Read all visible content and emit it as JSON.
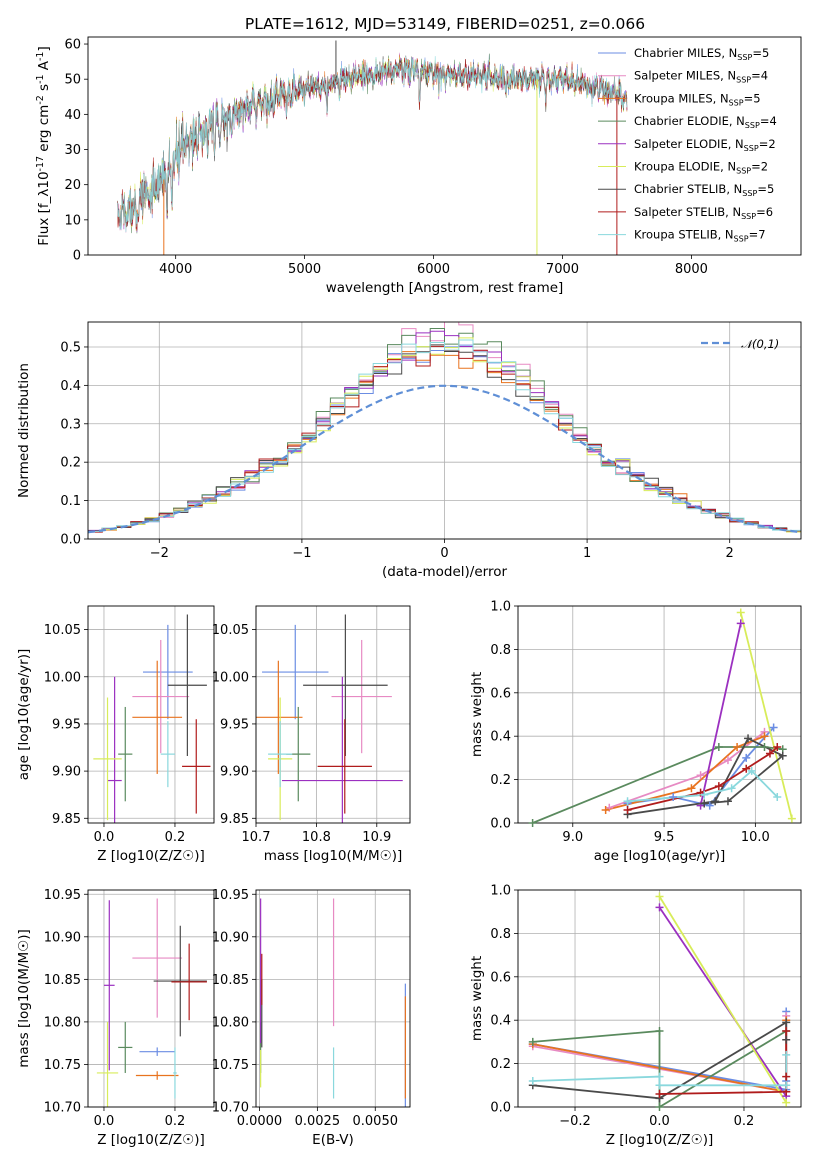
{
  "figure": {
    "title": "PLATE=1612, MJD=53149, FIBERID=0251, z=0.066",
    "colors": {
      "Chabrier MILES": "#6b8de3",
      "Salpeter MILES": "#e78ac3",
      "Kroupa MILES": "#e8731f",
      "Chabrier ELODIE": "#5a8a5e",
      "Salpeter ELODIE": "#9b30c0",
      "Kroupa ELODIE": "#d8ec5a",
      "Chabrier STELIB": "#4a4a4a",
      "Salpeter STELIB": "#b01c1c",
      "Kroupa STELIB": "#8ad8dd",
      "normal": "#5f8fd6"
    }
  },
  "chart_data": [
    {
      "id": "spectrum",
      "type": "line",
      "title": "PLATE=1612, MJD=53149, FIBERID=0251, z=0.066",
      "xlabel": "wavelength [Angstrom, rest frame]",
      "ylabel": "Flux [f_λ10^-17 erg cm^-2 s^-1 A^-1]",
      "xlim": [
        3320,
        8850
      ],
      "ylim": [
        0,
        62
      ],
      "xticks": [
        4000,
        5000,
        6000,
        7000,
        8000
      ],
      "yticks": [
        0,
        10,
        20,
        30,
        40,
        50,
        60
      ],
      "grid": false,
      "legend_position": "top-right",
      "legend": [
        "Chabrier MILES, N_SSP=5",
        "Salpeter MILES, N_SSP=4",
        "Kroupa MILES, N_SSP=5",
        "Chabrier ELODIE, N_SSP=4",
        "Salpeter ELODIE, N_SSP=2",
        "Kroupa ELODIE, N_SSP=2",
        "Chabrier STELIB, N_SSP=5",
        "Salpeter STELIB, N_SSP=6",
        "Kroupa STELIB, N_SSP=7"
      ],
      "continuum": {
        "x": [
          3550,
          3700,
          3850,
          3950,
          4050,
          4200,
          4400,
          4600,
          4800,
          5000,
          5200,
          5400,
          5600,
          5800,
          6000,
          6200,
          6400,
          6600,
          6800,
          7000,
          7200,
          7400,
          7500
        ],
        "y": [
          11,
          15,
          18,
          24,
          31,
          35,
          39,
          42,
          45,
          47,
          49,
          51,
          52,
          53,
          52,
          51,
          51,
          50,
          50,
          50,
          48,
          46,
          44
        ]
      },
      "absorption_lines": [
        {
          "x": 3934,
          "depth": 9
        },
        {
          "x": 3969,
          "depth": 8
        },
        {
          "x": 4102,
          "depth": 6
        },
        {
          "x": 4300,
          "depth": 8
        },
        {
          "x": 4340,
          "depth": 5
        },
        {
          "x": 4861,
          "depth": 4
        },
        {
          "x": 5175,
          "depth": 7
        },
        {
          "x": 5270,
          "depth": 4
        },
        {
          "x": 5890,
          "depth": 12
        },
        {
          "x": 6563,
          "depth": 3
        },
        {
          "x": 6870,
          "depth": 4
        }
      ],
      "spikes": [
        {
          "x": 3908,
          "y": 0,
          "series": "Kroupa MILES"
        },
        {
          "x": 5243,
          "y": 61,
          "series": "Chabrier STELIB"
        },
        {
          "x": 6802,
          "y": 0,
          "series": "Kroupa ELODIE"
        },
        {
          "x": 7422,
          "y": 0,
          "series": "Salpeter STELIB"
        }
      ],
      "wavelength_range": [
        3550,
        7500
      ]
    },
    {
      "id": "residuals",
      "type": "step",
      "xlabel": "(data-model)/error",
      "ylabel": "Normed distribution",
      "xlim": [
        -2.5,
        2.5
      ],
      "ylim": [
        0,
        0.565
      ],
      "xticks": [
        -2,
        -1,
        0,
        1,
        2
      ],
      "yticks": [
        0.0,
        0.1,
        0.2,
        0.3,
        0.4,
        0.5
      ],
      "grid": true,
      "legend_position": "top-right",
      "legend": "𝒩(0,1)",
      "bin_width": 0.1,
      "normal_curve": {
        "mean": 0,
        "sigma": 1
      },
      "series_peaks": [
        {
          "series": "Chabrier MILES",
          "peak": 0.48,
          "sigma": 0.85
        },
        {
          "series": "Salpeter MILES",
          "peak": 0.53,
          "sigma": 0.8
        },
        {
          "series": "Kroupa MILES",
          "peak": 0.47,
          "sigma": 0.86
        },
        {
          "series": "Chabrier ELODIE",
          "peak": 0.52,
          "sigma": 0.82
        },
        {
          "series": "Salpeter ELODIE",
          "peak": 0.5,
          "sigma": 0.82
        },
        {
          "series": "Kroupa ELODIE",
          "peak": 0.5,
          "sigma": 0.8
        },
        {
          "series": "Chabrier STELIB",
          "peak": 0.47,
          "sigma": 0.85
        },
        {
          "series": "Salpeter STELIB",
          "peak": 0.47,
          "sigma": 0.86
        },
        {
          "series": "Kroupa STELIB",
          "peak": 0.5,
          "sigma": 0.81
        }
      ]
    },
    {
      "id": "age-vs-Z",
      "type": "scatter",
      "xlabel": "Z [log10(Z/Z☉)]",
      "ylabel": "age  [log10(age/yr)]",
      "xlim": [
        -0.045,
        0.31
      ],
      "ylim": [
        9.845,
        10.075
      ],
      "xticks": [
        0.0,
        0.2
      ],
      "yticks": [
        9.85,
        9.9,
        9.95,
        10.0,
        10.05
      ],
      "grid": true,
      "points": [
        {
          "series": "Chabrier MILES",
          "x": 0.18,
          "xerr": 0.07,
          "y": 10.005,
          "yerr": 0.05
        },
        {
          "series": "Salpeter MILES",
          "x": 0.16,
          "xerr": 0.08,
          "y": 9.979,
          "yerr": 0.06
        },
        {
          "series": "Kroupa MILES",
          "x": 0.15,
          "xerr": 0.07,
          "y": 9.957,
          "yerr": 0.06
        },
        {
          "series": "Chabrier ELODIE",
          "x": 0.06,
          "xerr": 0.02,
          "y": 9.918,
          "yerr": 0.05
        },
        {
          "series": "Salpeter ELODIE",
          "x": 0.03,
          "xerr": 0.02,
          "y": 9.89,
          "yerr": 0.11
        },
        {
          "series": "Kroupa ELODIE",
          "x": 0.01,
          "xerr": 0.04,
          "y": 9.913,
          "yerr": 0.065
        },
        {
          "series": "Chabrier STELIB",
          "x": 0.235,
          "xerr": 0.055,
          "y": 9.991,
          "yerr": 0.075
        },
        {
          "series": "Salpeter STELIB",
          "x": 0.26,
          "xerr": 0.04,
          "y": 9.905,
          "yerr": 0.05
        },
        {
          "series": "Kroupa STELIB",
          "x": 0.18,
          "xerr": 0.02,
          "y": 9.918,
          "yerr": 0.035
        }
      ]
    },
    {
      "id": "age-vs-mass",
      "type": "scatter",
      "xlabel": "mass [log10(M/M☉)]",
      "ylabel": "",
      "xlim": [
        10.7,
        10.955
      ],
      "ylim": [
        9.845,
        10.075
      ],
      "xticks": [
        10.7,
        10.8,
        10.9
      ],
      "yticks": [
        9.85,
        9.9,
        9.95,
        10.0,
        10.05
      ],
      "grid": true,
      "points": [
        {
          "series": "Chabrier MILES",
          "x": 10.765,
          "xerr": 0.055,
          "y": 10.005,
          "yerr": 0.05
        },
        {
          "series": "Salpeter MILES",
          "x": 10.875,
          "xerr": 0.05,
          "y": 9.979,
          "yerr": 0.06
        },
        {
          "series": "Kroupa MILES",
          "x": 10.737,
          "xerr": 0.04,
          "y": 9.957,
          "yerr": 0.06
        },
        {
          "series": "Chabrier ELODIE",
          "x": 10.77,
          "xerr": 0.02,
          "y": 9.918,
          "yerr": 0.05
        },
        {
          "series": "Salpeter ELODIE",
          "x": 10.843,
          "xerr": 0.1,
          "y": 9.89,
          "yerr": 0.11
        },
        {
          "series": "Kroupa ELODIE",
          "x": 10.74,
          "xerr": 0.02,
          "y": 9.913,
          "yerr": 0.065
        },
        {
          "series": "Chabrier STELIB",
          "x": 10.848,
          "xerr": 0.07,
          "y": 9.991,
          "yerr": 0.075
        },
        {
          "series": "Salpeter STELIB",
          "x": 10.847,
          "xerr": 0.045,
          "y": 9.905,
          "yerr": 0.05
        },
        {
          "series": "Kroupa STELIB",
          "x": 10.74,
          "xerr": 0.02,
          "y": 9.918,
          "yerr": 0.035
        }
      ]
    },
    {
      "id": "mass-weight-vs-age",
      "type": "line",
      "xlabel": "age  [log10(age/yr)]",
      "ylabel": "mass weight",
      "xlim": [
        8.7,
        10.25
      ],
      "ylim": [
        0,
        1.0
      ],
      "xticks": [
        9.0,
        9.5,
        10.0
      ],
      "yticks": [
        0.0,
        0.2,
        0.4,
        0.6,
        0.8,
        1.0
      ],
      "grid": true,
      "series": [
        {
          "name": "Chabrier MILES",
          "x": [
            9.3,
            9.55,
            9.75,
            9.95,
            10.1
          ],
          "y": [
            0.09,
            0.12,
            0.08,
            0.3,
            0.44
          ]
        },
        {
          "name": "Salpeter MILES",
          "x": [
            9.2,
            9.7,
            9.85,
            10.05
          ],
          "y": [
            0.07,
            0.22,
            0.29,
            0.42
          ]
        },
        {
          "name": "Kroupa MILES",
          "x": [
            9.18,
            9.65,
            9.9,
            10.05
          ],
          "y": [
            0.06,
            0.16,
            0.35,
            0.4
          ]
        },
        {
          "name": "Chabrier ELODIE",
          "x": [
            8.78,
            9.8,
            10.05,
            10.15
          ],
          "y": [
            0.0,
            0.35,
            0.35,
            0.34
          ]
        },
        {
          "name": "Salpeter ELODIE",
          "x": [
            9.7,
            9.92
          ],
          "y": [
            0.08,
            0.92
          ]
        },
        {
          "name": "Kroupa ELODIE",
          "x": [
            9.92,
            10.2
          ],
          "y": [
            0.97,
            0.02
          ]
        },
        {
          "name": "Chabrier STELIB",
          "x": [
            9.3,
            9.78,
            9.96,
            10.15,
            9.85,
            9.72
          ],
          "y": [
            0.04,
            0.1,
            0.39,
            0.31,
            0.1,
            0.09
          ]
        },
        {
          "name": "Salpeter STELIB",
          "x": [
            9.3,
            9.7,
            9.8,
            9.95,
            10.08,
            10.12
          ],
          "y": [
            0.06,
            0.14,
            0.17,
            0.25,
            0.32,
            0.35
          ]
        },
        {
          "name": "Kroupa STELIB",
          "x": [
            9.3,
            9.72,
            9.87,
            9.98,
            10.12
          ],
          "y": [
            0.1,
            0.13,
            0.16,
            0.24,
            0.12
          ]
        }
      ]
    },
    {
      "id": "mass-vs-Z",
      "type": "scatter",
      "xlabel": "Z [log10(Z/Z☉)]",
      "ylabel": "mass [log10(M/M☉)]",
      "xlim": [
        -0.045,
        0.31
      ],
      "ylim": [
        10.7,
        10.955
      ],
      "xticks": [
        0.0,
        0.2
      ],
      "yticks": [
        10.7,
        10.75,
        10.8,
        10.85,
        10.9,
        10.95
      ],
      "grid": true,
      "points": [
        {
          "series": "Chabrier MILES",
          "x": 0.15,
          "xerr": 0.05,
          "y": 10.765,
          "yerr": 0.005
        },
        {
          "series": "Salpeter MILES",
          "x": 0.15,
          "xerr": 0.07,
          "y": 10.875,
          "yerr": 0.07
        },
        {
          "series": "Kroupa MILES",
          "x": 0.15,
          "xerr": 0.06,
          "y": 10.737,
          "yerr": 0.005
        },
        {
          "series": "Chabrier ELODIE",
          "x": 0.06,
          "xerr": 0.02,
          "y": 10.77,
          "yerr": 0.03
        },
        {
          "series": "Salpeter ELODIE",
          "x": 0.015,
          "xerr": 0.015,
          "y": 10.843,
          "yerr": 0.1
        },
        {
          "series": "Kroupa ELODIE",
          "x": 0.01,
          "xerr": 0.03,
          "y": 10.74,
          "yerr": 0.06
        },
        {
          "series": "Chabrier STELIB",
          "x": 0.215,
          "xerr": 0.075,
          "y": 10.848,
          "yerr": 0.065
        },
        {
          "series": "Salpeter STELIB",
          "x": 0.24,
          "xerr": 0.05,
          "y": 10.847,
          "yerr": 0.045
        },
        {
          "series": "Kroupa STELIB",
          "x": 0.2,
          "xerr": 0.005,
          "y": 10.74,
          "yerr": 0.03
        }
      ]
    },
    {
      "id": "mass-vs-EBV",
      "type": "scatter",
      "xlabel": "E(B-V)",
      "ylabel": "",
      "xlim": [
        -0.00015,
        0.0065
      ],
      "ylim": [
        10.7,
        10.955
      ],
      "xticks": [
        0.0,
        0.0025,
        0.005
      ],
      "xtick_labels": [
        "0.0000",
        "0.0025",
        "0.0050"
      ],
      "yticks": [
        10.7,
        10.75,
        10.8,
        10.85,
        10.9,
        10.95
      ],
      "grid": true,
      "points": [
        {
          "series": "Chabrier MILES",
          "x": 0.0063,
          "y": 10.765,
          "yerr": 0.08
        },
        {
          "series": "Salpeter MILES",
          "x": 0.0032,
          "y": 10.87,
          "yerr": 0.075
        },
        {
          "series": "Kroupa MILES",
          "x": 0.0063,
          "y": 10.77,
          "yerr": 0.06
        },
        {
          "series": "Chabrier ELODIE",
          "x": 5e-05,
          "y": 10.77,
          "yerr": 0.03
        },
        {
          "series": "Salpeter ELODIE",
          "x": 5e-05,
          "y": 10.86,
          "yerr": 0.085
        },
        {
          "series": "Kroupa ELODIE",
          "x": 5e-05,
          "y": 10.745,
          "yerr": 0.022
        },
        {
          "series": "Chabrier STELIB",
          "x": 0.0001,
          "y": 10.81,
          "yerr": 0.04
        },
        {
          "series": "Salpeter STELIB",
          "x": 0.0001,
          "y": 10.85,
          "yerr": 0.03
        },
        {
          "series": "Kroupa STELIB",
          "x": 0.0032,
          "y": 10.74,
          "yerr": 0.03
        }
      ]
    },
    {
      "id": "mass-weight-vs-Z",
      "type": "line",
      "xlabel": "Z [log10(Z/Z☉)]",
      "ylabel": "mass weight",
      "xlim": [
        -0.335,
        0.335
      ],
      "ylim": [
        0,
        1.0
      ],
      "xticks": [
        -0.2,
        0.0,
        0.2
      ],
      "yticks": [
        0.0,
        0.2,
        0.4,
        0.6,
        0.8,
        1.0
      ],
      "grid": true,
      "series": [
        {
          "name": "Chabrier MILES",
          "x": [
            -0.3,
            0.3,
            0.3,
            0.3
          ],
          "y": [
            0.29,
            0.08,
            0.44,
            0.12
          ]
        },
        {
          "name": "Salpeter MILES",
          "x": [
            -0.3,
            0.3,
            0.3
          ],
          "y": [
            0.28,
            0.07,
            0.42
          ]
        },
        {
          "name": "Kroupa MILES",
          "x": [
            -0.3,
            0.3,
            0.3
          ],
          "y": [
            0.29,
            0.07,
            0.4
          ]
        },
        {
          "name": "Chabrier ELODIE",
          "x": [
            -0.3,
            0.0,
            0.0,
            0.3
          ],
          "y": [
            0.3,
            0.35,
            0.0,
            0.35
          ]
        },
        {
          "name": "Salpeter ELODIE",
          "x": [
            0.0,
            0.3
          ],
          "y": [
            0.92,
            0.05
          ]
        },
        {
          "name": "Kroupa ELODIE",
          "x": [
            0.0,
            0.3
          ],
          "y": [
            0.97,
            0.02
          ]
        },
        {
          "name": "Chabrier STELIB",
          "x": [
            -0.3,
            0.0,
            0.3,
            0.3
          ],
          "y": [
            0.1,
            0.04,
            0.39,
            0.31
          ]
        },
        {
          "name": "Salpeter STELIB",
          "x": [
            0.0,
            0.3,
            0.3,
            0.3
          ],
          "y": [
            0.06,
            0.07,
            0.35,
            0.14
          ]
        },
        {
          "name": "Kroupa STELIB",
          "x": [
            -0.3,
            0.0,
            0.0,
            0.3,
            0.3
          ],
          "y": [
            0.12,
            0.14,
            0.1,
            0.1,
            0.24
          ]
        }
      ]
    }
  ]
}
